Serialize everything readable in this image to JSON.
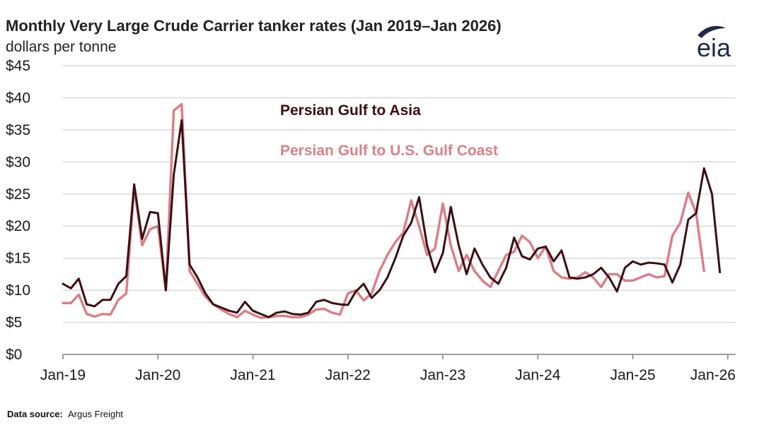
{
  "chart_data": {
    "type": "line",
    "title": "Monthly Very Large Crude Carrier tanker rates (Jan 2019–Jan 2026)",
    "subtitle": "dollars per tonne",
    "ylim": [
      0,
      45
    ],
    "yticks": [
      0,
      5,
      10,
      15,
      20,
      25,
      30,
      35,
      40,
      45
    ],
    "ytick_labels": [
      "$0",
      "$5",
      "$10",
      "$15",
      "$20",
      "$25",
      "$30",
      "$35",
      "$40",
      "$45"
    ],
    "xticks": [
      0,
      12,
      24,
      36,
      48,
      60,
      72,
      84
    ],
    "xtick_labels": [
      "Jan-19",
      "Jan-20",
      "Jan-21",
      "Jan-22",
      "Jan-23",
      "Jan-24",
      "Jan-25",
      "Jan-26"
    ],
    "grid": "horizontal",
    "series": [
      {
        "name": "Persian Gulf to U.S. Gulf Coast",
        "color": "#d9808a",
        "values": [
          8.0,
          8.0,
          9.3,
          6.3,
          5.9,
          6.3,
          6.2,
          8.5,
          9.5,
          26.0,
          17.0,
          19.5,
          20.0,
          10.0,
          38.0,
          39.0,
          13.0,
          11.0,
          9.0,
          7.8,
          7.0,
          6.3,
          5.8,
          6.8,
          6.2,
          5.7,
          5.8,
          6.0,
          6.0,
          5.8,
          5.8,
          6.2,
          7.0,
          7.1,
          6.5,
          6.2,
          9.5,
          10.0,
          8.4,
          9.5,
          13.0,
          15.5,
          17.5,
          19.0,
          24.0,
          20.0,
          15.5,
          16.5,
          23.5,
          17.0,
          13.0,
          15.5,
          13.0,
          11.5,
          10.5,
          13.0,
          15.5,
          16.0,
          18.5,
          17.5,
          15.0,
          16.8,
          13.0,
          12.0,
          11.8,
          12.0,
          12.8,
          12.0,
          10.5,
          12.5,
          12.5,
          11.5,
          11.5,
          12.0,
          12.5,
          12.0,
          12.2,
          18.5,
          20.5,
          25.2,
          22.0,
          13.0
        ]
      },
      {
        "name": "Persian Gulf to Asia",
        "color": "#3a0e14",
        "values": [
          11.0,
          10.3,
          11.8,
          7.8,
          7.5,
          8.5,
          8.5,
          11.0,
          12.2,
          26.5,
          18.0,
          22.2,
          22.0,
          10.0,
          28.0,
          36.5,
          14.0,
          12.0,
          9.5,
          7.8,
          7.3,
          6.8,
          6.5,
          8.2,
          6.8,
          6.3,
          5.8,
          6.5,
          6.7,
          6.3,
          6.2,
          6.5,
          8.2,
          8.5,
          8.0,
          7.8,
          7.7,
          9.8,
          11.0,
          8.8,
          10.0,
          12.0,
          15.0,
          18.5,
          20.5,
          24.5,
          17.0,
          12.8,
          15.8,
          23.0,
          17.0,
          12.5,
          16.5,
          14.0,
          12.0,
          11.0,
          13.5,
          18.2,
          15.3,
          14.8,
          16.5,
          16.8,
          14.5,
          16.2,
          12.0,
          11.8,
          12.0,
          12.5,
          13.5,
          12.0,
          9.8,
          13.5,
          14.5,
          14.0,
          14.3,
          14.2,
          14.0,
          11.2,
          14.0,
          21.0,
          22.0,
          29.0,
          25.0,
          12.8
        ]
      }
    ],
    "legend": [
      {
        "label": "Persian Gulf to Asia",
        "color": "#3a0e14"
      },
      {
        "label": "Persian Gulf to U.S. Gulf Coast",
        "color": "#d9808a"
      }
    ]
  },
  "source": {
    "label": "Data source:",
    "text": "Argus Freight"
  },
  "logo": {
    "text": "eia",
    "icon": "eia-logo-swoosh"
  }
}
